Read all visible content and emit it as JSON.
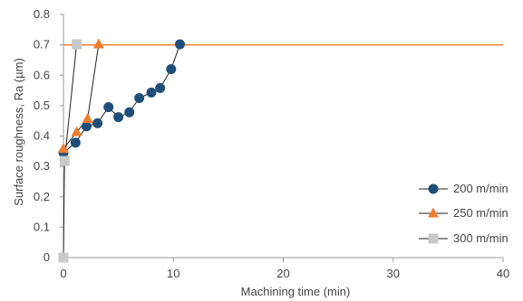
{
  "chart_data": {
    "type": "scatter",
    "xlabel": "Machining time (min)",
    "ylabel": "Surface roughness, Ra (µm)",
    "xlim": [
      0,
      40
    ],
    "ylim": [
      0,
      0.8
    ],
    "xticks": [
      0,
      10,
      20,
      30,
      40
    ],
    "yticks": [
      0,
      0.1,
      0.2,
      0.3,
      0.4,
      0.5,
      0.6,
      0.7,
      0.8
    ],
    "ytick_labels": [
      "0",
      "0.1",
      "0.2",
      "0.3",
      "0.4",
      "0.5",
      "0.6",
      "0.7",
      "0.8"
    ],
    "xtick_labels": [
      "0",
      "10",
      "20",
      "30",
      "40"
    ],
    "grid": false,
    "legend_position": "right",
    "reference_line": {
      "y": 0.7,
      "color": "#ED7D31"
    },
    "series": [
      {
        "name": "200 m/min",
        "marker": "circle",
        "color": "#1F4E79",
        "x": [
          0,
          1.1,
          2.1,
          3.1,
          4.1,
          5.0,
          6.0,
          6.9,
          8.0,
          8.8,
          9.8,
          10.6
        ],
        "y": [
          0.345,
          0.378,
          0.432,
          0.442,
          0.495,
          0.462,
          0.478,
          0.525,
          0.543,
          0.558,
          0.62,
          0.702
        ]
      },
      {
        "name": "250 m/min",
        "marker": "triangle",
        "color": "#ED7D31",
        "x": [
          0,
          1.2,
          2.2,
          3.2
        ],
        "y": [
          0.358,
          0.413,
          0.457,
          0.702
        ]
      },
      {
        "name": "300 m/min",
        "marker": "square",
        "color": "#C9C9C9",
        "x": [
          0,
          0.1,
          1.2
        ],
        "y": [
          0,
          0.318,
          0.702
        ]
      }
    ]
  }
}
